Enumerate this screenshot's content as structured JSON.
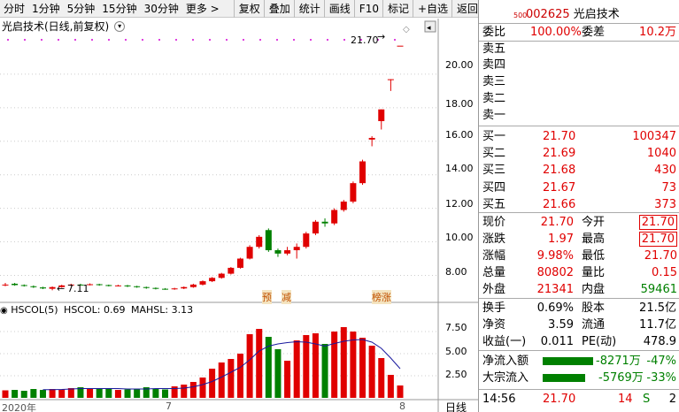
{
  "toolbar": {
    "items": [
      "分时",
      "1分钟",
      "5分钟",
      "15分钟",
      "30分钟",
      "更多 >",
      "复权",
      "叠加",
      "统计",
      "画线",
      "F10",
      "标记",
      "+自选",
      "返回"
    ]
  },
  "chart": {
    "title": "光启技术(日线,前复权)",
    "price_axis": [
      "20.00",
      "18.00",
      "16.00",
      "14.00",
      "12.00",
      "10.00",
      "8.00"
    ],
    "high_label": "21.70",
    "low_label": "7.11",
    "date_labels": [
      "2020年",
      "7",
      "8"
    ],
    "markers": [
      "预",
      "减",
      "榜涨"
    ],
    "indicator_title": "HSCOL(5)",
    "indicator_value": "HSCOL: 0.69",
    "indicator_ma": "MAHSL: 3.13",
    "ind_axis": [
      "7.50",
      "5.00",
      "2.50"
    ],
    "period": "日线"
  },
  "chart_data": {
    "type": "candlestick",
    "candles": [
      {
        "o": 7.4,
        "c": 7.45,
        "h": 7.55,
        "l": 7.35,
        "up": true
      },
      {
        "o": 7.5,
        "c": 7.42,
        "h": 7.55,
        "l": 7.38,
        "up": false
      },
      {
        "o": 7.42,
        "c": 7.38,
        "h": 7.46,
        "l": 7.33,
        "up": false
      },
      {
        "o": 7.35,
        "c": 7.3,
        "h": 7.4,
        "l": 7.25,
        "up": false
      },
      {
        "o": 7.28,
        "c": 7.22,
        "h": 7.32,
        "l": 7.18,
        "up": false
      },
      {
        "o": 7.2,
        "c": 7.3,
        "h": 7.34,
        "l": 7.11,
        "up": true
      },
      {
        "o": 7.3,
        "c": 7.4,
        "h": 7.44,
        "l": 7.26,
        "up": true
      },
      {
        "o": 7.4,
        "c": 7.45,
        "h": 7.5,
        "l": 7.36,
        "up": true
      },
      {
        "o": 7.45,
        "c": 7.43,
        "h": 7.5,
        "l": 7.4,
        "up": false
      },
      {
        "o": 7.43,
        "c": 7.47,
        "h": 7.52,
        "l": 7.4,
        "up": true
      },
      {
        "o": 7.47,
        "c": 7.42,
        "h": 7.5,
        "l": 7.38,
        "up": false
      },
      {
        "o": 7.42,
        "c": 7.38,
        "h": 7.45,
        "l": 7.34,
        "up": false
      },
      {
        "o": 7.38,
        "c": 7.4,
        "h": 7.44,
        "l": 7.34,
        "up": true
      },
      {
        "o": 7.4,
        "c": 7.35,
        "h": 7.43,
        "l": 7.3,
        "up": false
      },
      {
        "o": 7.35,
        "c": 7.3,
        "h": 7.38,
        "l": 7.26,
        "up": false
      },
      {
        "o": 7.3,
        "c": 7.25,
        "h": 7.33,
        "l": 7.2,
        "up": false
      },
      {
        "o": 7.25,
        "c": 7.2,
        "h": 7.28,
        "l": 7.16,
        "up": false
      },
      {
        "o": 7.2,
        "c": 7.18,
        "h": 7.24,
        "l": 7.14,
        "up": false
      },
      {
        "o": 7.18,
        "c": 7.22,
        "h": 7.26,
        "l": 7.14,
        "up": true
      },
      {
        "o": 7.22,
        "c": 7.3,
        "h": 7.34,
        "l": 7.18,
        "up": true
      },
      {
        "o": 7.3,
        "c": 7.45,
        "h": 7.5,
        "l": 7.26,
        "up": true
      },
      {
        "o": 7.45,
        "c": 7.65,
        "h": 7.7,
        "l": 7.4,
        "up": true
      },
      {
        "o": 7.65,
        "c": 7.85,
        "h": 7.9,
        "l": 7.6,
        "up": true
      },
      {
        "o": 7.85,
        "c": 8.1,
        "h": 8.15,
        "l": 7.8,
        "up": true
      },
      {
        "o": 8.1,
        "c": 8.45,
        "h": 8.5,
        "l": 8.05,
        "up": true
      },
      {
        "o": 8.45,
        "c": 9.0,
        "h": 9.05,
        "l": 8.4,
        "up": true
      },
      {
        "o": 9.0,
        "c": 9.7,
        "h": 9.8,
        "l": 8.95,
        "up": true
      },
      {
        "o": 9.7,
        "c": 10.3,
        "h": 10.4,
        "l": 9.6,
        "up": true
      },
      {
        "o": 10.7,
        "c": 9.5,
        "h": 10.8,
        "l": 9.4,
        "up": false
      },
      {
        "o": 9.5,
        "c": 9.3,
        "h": 9.6,
        "l": 9.1,
        "up": false
      },
      {
        "o": 9.3,
        "c": 9.5,
        "h": 9.7,
        "l": 9.2,
        "up": true
      },
      {
        "o": 9.5,
        "c": 9.7,
        "h": 9.9,
        "l": 9.0,
        "up": true
      },
      {
        "o": 9.7,
        "c": 10.5,
        "h": 10.6,
        "l": 9.6,
        "up": true
      },
      {
        "o": 10.5,
        "c": 11.2,
        "h": 11.3,
        "l": 10.4,
        "up": true
      },
      {
        "o": 11.2,
        "c": 11.1,
        "h": 11.4,
        "l": 10.9,
        "up": false
      },
      {
        "o": 11.1,
        "c": 11.9,
        "h": 12.0,
        "l": 11.0,
        "up": true
      },
      {
        "o": 11.9,
        "c": 12.4,
        "h": 12.5,
        "l": 11.8,
        "up": true
      },
      {
        "o": 12.4,
        "c": 13.5,
        "h": 13.6,
        "l": 12.3,
        "up": true
      },
      {
        "o": 13.5,
        "c": 14.8,
        "h": 14.9,
        "l": 13.4,
        "up": true
      },
      {
        "o": 16.1,
        "c": 16.2,
        "h": 16.3,
        "l": 15.7,
        "up": true
      },
      {
        "o": 17.2,
        "c": 17.9,
        "h": 17.9,
        "l": 16.7,
        "up": true
      },
      {
        "o": 19.7,
        "c": 19.7,
        "h": 19.7,
        "l": 19.0,
        "up": true
      },
      {
        "o": 21.7,
        "c": 21.7,
        "h": 21.7,
        "l": 21.7,
        "up": true
      }
    ],
    "volume": [
      0.85,
      0.9,
      0.8,
      1.0,
      0.9,
      1.0,
      0.95,
      1.1,
      1.2,
      1.0,
      1.1,
      1.0,
      0.9,
      0.95,
      1.0,
      1.2,
      1.05,
      0.95,
      1.3,
      1.5,
      1.8,
      2.3,
      3.3,
      4.0,
      4.4,
      5.0,
      7.2,
      7.8,
      6.9,
      5.5,
      4.2,
      6.5,
      7.1,
      7.3,
      6.1,
      7.5,
      8.0,
      7.5,
      6.8,
      5.9,
      4.5,
      2.6,
      1.4
    ],
    "ma": [
      null,
      null,
      null,
      null,
      0.92,
      0.93,
      0.95,
      1.0,
      1.05,
      1.05,
      1.05,
      1.05,
      1.05,
      1.0,
      1.0,
      1.0,
      1.05,
      1.05,
      1.05,
      1.1,
      1.25,
      1.5,
      1.85,
      2.35,
      2.9,
      3.45,
      4.3,
      5.3,
      5.85,
      6.1,
      6.25,
      6.35,
      6.3,
      6.1,
      5.85,
      6.15,
      6.4,
      6.55,
      6.6,
      6.3,
      5.6,
      4.5,
      3.3
    ],
    "ylim": [
      6.6,
      22.0
    ],
    "vol_ylim": [
      0,
      9.0
    ]
  },
  "panel": {
    "code": "002625",
    "name": "光启技术",
    "small": "500",
    "weibi_label": "委比",
    "weibi": "100.00%",
    "weicha_label": "委差",
    "weicha": "10.2万",
    "sell": [
      "卖五",
      "卖四",
      "卖三",
      "卖二",
      "卖一"
    ],
    "buy": [
      {
        "label": "买一",
        "price": "21.70",
        "vol": "100347"
      },
      {
        "label": "买二",
        "price": "21.69",
        "vol": "1040"
      },
      {
        "label": "买三",
        "price": "21.68",
        "vol": "430"
      },
      {
        "label": "买四",
        "price": "21.67",
        "vol": "73"
      },
      {
        "label": "买五",
        "price": "21.66",
        "vol": "373"
      }
    ],
    "quote": [
      {
        "l1": "现价",
        "v1": "21.70",
        "c1": "red",
        "l2": "今开",
        "v2": "21.70",
        "c2": "red",
        "b2": true
      },
      {
        "l1": "涨跌",
        "v1": "1.97",
        "c1": "red",
        "l2": "最高",
        "v2": "21.70",
        "c2": "red",
        "b2": true
      },
      {
        "l1": "涨幅",
        "v1": "9.98%",
        "c1": "red",
        "l2": "最低",
        "v2": "21.70",
        "c2": "red",
        "b2": false
      },
      {
        "l1": "总量",
        "v1": "80802",
        "c1": "red",
        "l2": "量比",
        "v2": "0.15",
        "c2": "red",
        "b2": false
      },
      {
        "l1": "外盘",
        "v1": "21341",
        "c1": "red",
        "l2": "内盘",
        "v2": "59461",
        "c2": "grn",
        "b2": false
      }
    ],
    "fund": [
      {
        "l1": "换手",
        "v1": "0.69%",
        "l2": "股本",
        "v2": "21.5亿"
      },
      {
        "l1": "净资",
        "v1": "3.59",
        "l2": "流通",
        "v2": "11.7亿"
      },
      {
        "l1": "收益(一)",
        "v1": "0.011",
        "l2": "PE(动)",
        "v2": "478.9"
      }
    ],
    "flow": [
      {
        "label": "净流入额",
        "value": "-8271万",
        "pct": "-47%"
      },
      {
        "label": "大宗流入",
        "value": "-5769万",
        "pct": "-33%"
      }
    ],
    "trade": {
      "time": "14:56",
      "price": "21.70",
      "vol": "14",
      "side": "S",
      "num": "2"
    }
  }
}
